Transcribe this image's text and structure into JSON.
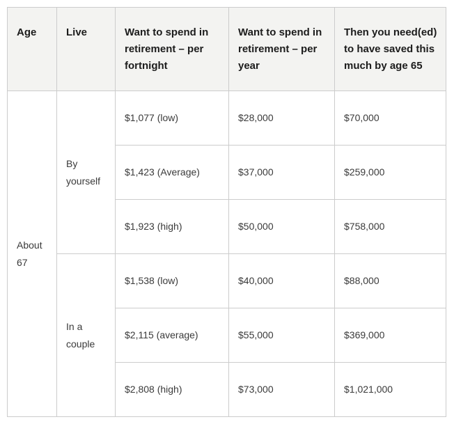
{
  "table": {
    "headers": [
      "Age",
      "Live",
      "Want to spend in retirement – per fortnight",
      "Want to spend in retirement – per year",
      "Then you need(ed) to have saved this much by age 65"
    ],
    "age_group": "About 67",
    "groups": [
      {
        "live": "By yourself",
        "rows": [
          [
            "$1,077 (low)",
            "$28,000",
            "$70,000"
          ],
          [
            "$1,423 (Average)",
            "$37,000",
            "$259,000"
          ],
          [
            "$1,923 (high)",
            "$50,000",
            "$758,000"
          ]
        ]
      },
      {
        "live": "In a couple",
        "rows": [
          [
            "$1,538 (low)",
            "$40,000",
            "$88,000"
          ],
          [
            "$2,115 (average)",
            "$55,000",
            "$369,000"
          ],
          [
            "$2,808 (high)",
            "$73,000",
            "$1,021,000"
          ]
        ]
      }
    ]
  },
  "colors": {
    "header_bg": "#f3f3f1",
    "border": "#cccccc",
    "header_text": "#1c1c1c",
    "body_text": "#3a3a3a",
    "page_bg": "#ffffff"
  }
}
